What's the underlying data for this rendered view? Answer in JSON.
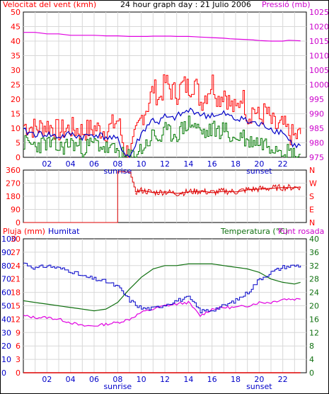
{
  "title": "24 hour graph day : 21 Julio 2006",
  "panels": {
    "wind": {
      "label_left": "Velocitat del vent (kmh)",
      "label_right": "Pressió (mb)",
      "left_ticks": [
        "0",
        "5",
        "10",
        "15",
        "20",
        "25",
        "30",
        "35",
        "40",
        "45",
        "50"
      ],
      "right_ticks": [
        "975",
        "980",
        "985",
        "990",
        "995",
        "1000",
        "1005",
        "1010",
        "1015",
        "1020",
        "1025"
      ]
    },
    "dir": {
      "left_ticks": [
        "0",
        "90",
        "180",
        "270",
        "360"
      ],
      "right_ticks": [
        "N",
        "E",
        "S",
        "W",
        "N"
      ]
    },
    "bottom": {
      "label_rain": "Pluja (mm)",
      "label_hum": "Humitat",
      "label_temp": "Temperatura (°C)",
      "label_dew": "Punt rosada",
      "left_ticks_rain": [
        "0",
        "3",
        "6",
        "9",
        "12",
        "15",
        "18",
        "21",
        "24",
        "27",
        "30"
      ],
      "left_ticks_hum": [
        "0",
        "10",
        "20",
        "30",
        "40",
        "50",
        "60",
        "70",
        "80",
        "90",
        "100"
      ],
      "right_ticks": [
        "0",
        "4",
        "8",
        "12",
        "16",
        "20",
        "24",
        "28",
        "32",
        "36",
        "40"
      ]
    }
  },
  "x_ticks": [
    "02",
    "04",
    "06",
    "08",
    "10",
    "12",
    "14",
    "16",
    "18",
    "20",
    "22"
  ],
  "sunrise_label": "sunrise",
  "sunset_label": "sunset",
  "colors": {
    "wind_max": "#ff0000",
    "wind_avg": "#0000c8",
    "wind_min": "#007800",
    "pressure": "#e000e0",
    "direction": "#dd0000",
    "humidity": "#0000c8",
    "temperature": "#107010",
    "dewpoint": "#e000e0",
    "rain": "#dd0000",
    "grid": "#d8d8d8",
    "left_axis_text": "#ff0000",
    "right_axis_text": "#cc00cc"
  },
  "chart_data": [
    {
      "type": "line",
      "title": "24 hour graph day : 21 Julio 2006",
      "xlabel": "",
      "ylabel": "Velocitat del vent (kmh)",
      "ylabel_right": "Pressió (mb)",
      "ylim": [
        0,
        50
      ],
      "ylim_right": [
        975,
        1025
      ],
      "x": [
        0,
        1,
        2,
        3,
        4,
        5,
        6,
        7,
        8,
        8.5,
        9,
        10,
        10.5,
        11,
        11.5,
        12,
        12.5,
        13,
        13.5,
        14,
        14.5,
        15,
        15.5,
        16,
        16.5,
        17,
        17.5,
        18,
        18.5,
        19,
        19.5,
        20,
        20.5,
        21,
        21.5,
        22,
        22.5,
        23,
        23.5
      ],
      "series": [
        {
          "name": "Velocitat del vent (max)",
          "values": [
            11,
            10,
            11,
            9,
            10,
            9,
            10,
            9,
            13,
            3,
            1,
            14,
            18,
            24,
            20,
            26,
            23,
            22,
            25,
            24,
            26,
            19,
            22,
            26,
            20,
            23,
            18,
            16,
            22,
            14,
            17,
            13,
            16,
            12,
            10,
            11,
            8,
            7,
            8
          ]
        },
        {
          "name": "Velocitat del vent (mitjana)",
          "values": [
            9,
            8,
            8,
            7,
            8,
            7,
            8,
            7,
            6,
            2,
            0,
            8,
            11,
            13,
            12,
            14,
            13,
            14,
            15,
            16,
            16,
            15,
            14,
            15,
            14,
            15,
            14,
            13,
            14,
            12,
            12,
            11,
            11,
            10,
            9,
            9,
            6,
            4,
            4
          ]
        },
        {
          "name": "Velocitat del vent (min)",
          "values": [
            5,
            4,
            5,
            3,
            5,
            3,
            5,
            3,
            2,
            0,
            0,
            3,
            5,
            8,
            6,
            9,
            8,
            8,
            10,
            12,
            11,
            9,
            8,
            10,
            9,
            10,
            7,
            6,
            8,
            5,
            6,
            5,
            5,
            4,
            4,
            3,
            2,
            1,
            1
          ]
        },
        {
          "name": "Pressió",
          "axis": "right",
          "values": [
            1018,
            1018,
            1017.5,
            1017.5,
            1017,
            1017,
            1017,
            1016.8,
            1016.8,
            1016.7,
            1016.6,
            1016.6,
            1016.6,
            1016.7,
            1016.7,
            1016.7,
            1016.7,
            1016.6,
            1016.6,
            1016.6,
            1016.5,
            1016.4,
            1016.3,
            1016.2,
            1016.1,
            1016,
            1015.8,
            1015.7,
            1015.6,
            1015.5,
            1015.4,
            1015.2,
            1015.1,
            1015,
            1015,
            1015,
            1015.3,
            1015.2,
            1015.1
          ]
        }
      ]
    },
    {
      "type": "line",
      "ylabel": "",
      "ylim": [
        0,
        360
      ],
      "x": [
        0,
        2,
        4,
        6,
        7.9,
        8,
        9,
        9.5,
        10,
        11,
        12,
        13,
        14,
        15,
        16,
        17,
        18,
        19,
        20,
        21,
        22,
        23,
        23.5
      ],
      "series": [
        {
          "name": "Direcció del vent",
          "values": [
            0,
            0,
            0,
            0,
            0,
            350,
            345,
            210,
            220,
            205,
            210,
            200,
            210,
            215,
            205,
            215,
            210,
            225,
            230,
            235,
            240,
            240,
            245
          ]
        }
      ]
    },
    {
      "type": "line",
      "xlabel": "",
      "ylabel": "Pluja (mm)",
      "ylabel_right": "Temperatura (°C)",
      "ylim": [
        0,
        100
      ],
      "ylim_right": [
        0,
        40
      ],
      "x": [
        0,
        1,
        2,
        3,
        4,
        5,
        6,
        7,
        8,
        9,
        10,
        11,
        12,
        13,
        14,
        15,
        16,
        17,
        18,
        19,
        20,
        21,
        22,
        23,
        23.5
      ],
      "series": [
        {
          "name": "Humitat",
          "values": [
            82,
            78,
            80,
            78,
            76,
            72,
            70,
            68,
            64,
            54,
            48,
            48,
            51,
            54,
            56,
            46,
            47,
            50,
            54,
            60,
            70,
            75,
            79,
            80,
            80
          ]
        },
        {
          "name": "Temperatura (°C)",
          "axis": "right",
          "values": [
            21.5,
            21,
            20.5,
            20,
            19.5,
            19,
            18.5,
            19,
            21,
            25,
            28.5,
            31,
            32,
            32,
            32.5,
            32.5,
            32.5,
            32,
            31.5,
            31,
            30,
            28,
            27,
            26.5,
            27
          ]
        },
        {
          "name": "Punt rosada",
          "axis": "right",
          "values": [
            17,
            16.5,
            16.5,
            16,
            15,
            14,
            14,
            14.5,
            15,
            16,
            18,
            19,
            20,
            20.5,
            21,
            17,
            19,
            19.5,
            19.5,
            20,
            21,
            21,
            22,
            22,
            22
          ]
        },
        {
          "name": "Pluja (mm)",
          "values": [
            0,
            0,
            0,
            0,
            0,
            0,
            0,
            0,
            0,
            0,
            0,
            0,
            0,
            0,
            0,
            0,
            0,
            0,
            0,
            0,
            0,
            0,
            0,
            0,
            0
          ]
        }
      ]
    }
  ]
}
